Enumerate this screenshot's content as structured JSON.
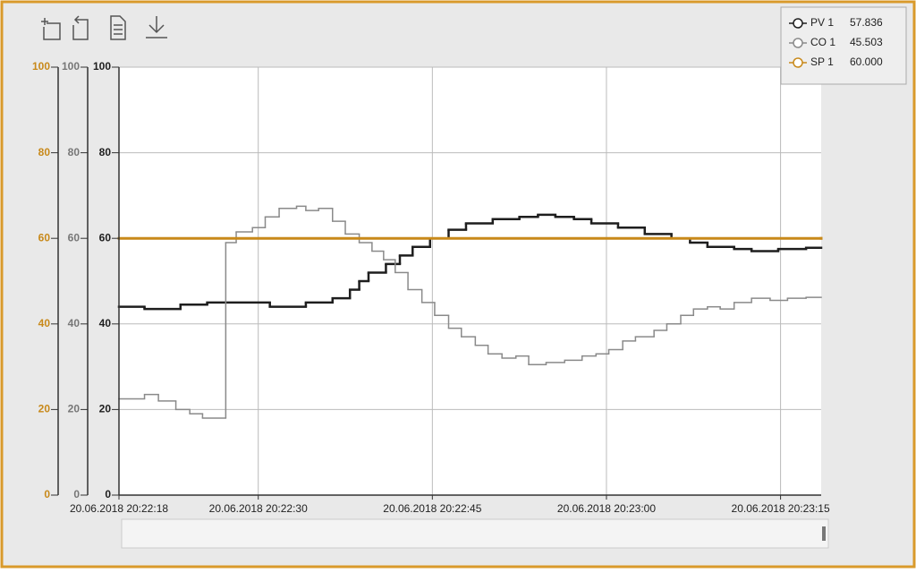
{
  "chart_data": {
    "type": "step",
    "xlim": [
      73338.0,
      73398.5
    ],
    "xticks": [
      {
        "value": 73338,
        "label": "20.06.2018 20:22:18"
      },
      {
        "value": 73350,
        "label": "20.06.2018 20:22:30"
      },
      {
        "value": 73365,
        "label": "20.06.2018 20:22:45"
      },
      {
        "value": 73380,
        "label": "20.06.2018 20:23:00"
      },
      {
        "value": 73395,
        "label": "20.06.2018 20:23:15"
      }
    ],
    "ylim": [
      0,
      100
    ],
    "yticks": [
      0,
      20,
      40,
      60,
      80,
      100
    ],
    "grid": true,
    "legend": "top-right",
    "series": [
      {
        "name": "PV 1",
        "legend_value": "57.836",
        "color": "#1e1e1e",
        "x": [
          73338.0,
          73340.2,
          73343.3,
          73345.6,
          73351.0,
          73354.1,
          73356.4,
          73357.9,
          73358.7,
          73359.5,
          73361.0,
          73362.2,
          73363.3,
          73364.8,
          73366.4,
          73367.9,
          73370.2,
          73372.5,
          73374.1,
          73375.6,
          73377.2,
          73378.7,
          73381.0,
          73383.3,
          73385.6,
          73387.2,
          73388.7,
          73391.0,
          73392.5,
          73394.8,
          73397.2
        ],
        "values": [
          44,
          43.5,
          44.5,
          45,
          44,
          45,
          46,
          48,
          50,
          52,
          54,
          56,
          58,
          60,
          62,
          63.5,
          64.5,
          65,
          65.5,
          65,
          64.5,
          63.5,
          62.5,
          61,
          60,
          59,
          58,
          57.5,
          57,
          57.5,
          57.8
        ]
      },
      {
        "name": "CO 1",
        "legend_value": "45.503",
        "color": "#8a8a8a",
        "x": [
          73338.0,
          73340.2,
          73341.4,
          73342.9,
          73344.1,
          73345.2,
          73347.2,
          73348.1,
          73349.5,
          73350.6,
          73351.8,
          73353.3,
          73354.1,
          73355.2,
          73356.4,
          73357.5,
          73358.7,
          73359.8,
          73360.8,
          73361.8,
          73362.9,
          73364.1,
          73365.2,
          73366.4,
          73367.5,
          73368.7,
          73369.8,
          73371.0,
          73372.2,
          73373.3,
          73374.8,
          73376.4,
          73377.9,
          73379.1,
          73380.2,
          73381.4,
          73382.5,
          73384.1,
          73385.2,
          73386.4,
          73387.5,
          73388.7,
          73389.8,
          73391.0,
          73392.5,
          73394.1,
          73395.6,
          73397.2
        ],
        "values": [
          22.5,
          23.5,
          22,
          20,
          19,
          18,
          59,
          61.5,
          62.5,
          65,
          67,
          67.5,
          66.5,
          67,
          64,
          61,
          59,
          57,
          55,
          52,
          48,
          45,
          42,
          39,
          37,
          35,
          33,
          32,
          32.5,
          30.5,
          31,
          31.5,
          32.5,
          33,
          34,
          36,
          37,
          38.5,
          40,
          42,
          43.5,
          44,
          43.5,
          45,
          46,
          45.5,
          46,
          46.2
        ]
      },
      {
        "name": "SP 1",
        "legend_value": "60.000",
        "color": "#c8891a",
        "x": [
          73338.0,
          73398.5
        ],
        "values": [
          60,
          60
        ]
      }
    ],
    "axis_colors": [
      "#c8891a",
      "#777777",
      "#1e1e1e"
    ]
  }
}
